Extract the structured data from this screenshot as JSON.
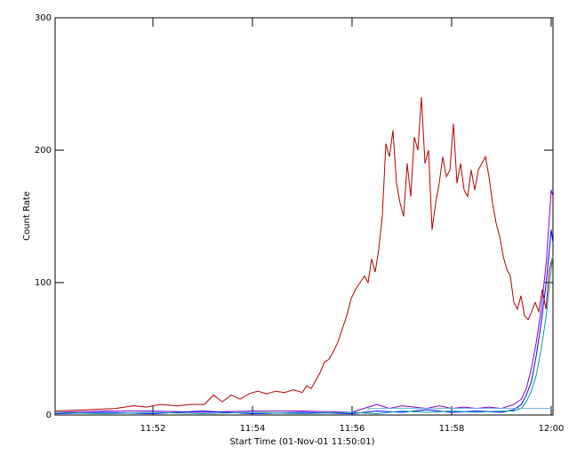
{
  "chart_data": {
    "type": "line",
    "x_label": "Start Time (01-Nov-01 11:50:01)",
    "y_label": "Count Rate",
    "xlim": [
      0.036,
      10.036
    ],
    "ylim": [
      0,
      300
    ],
    "xticks": [
      {
        "value": 2,
        "label": "11:52"
      },
      {
        "value": 4,
        "label": "11:54"
      },
      {
        "value": 6,
        "label": "11:56"
      },
      {
        "value": 8,
        "label": "11:58"
      },
      {
        "value": 10,
        "label": "12:00"
      }
    ],
    "yticks": [
      0,
      100,
      200,
      300
    ],
    "series": [
      {
        "color": "#b00000",
        "x": [
          0.036,
          0.714,
          1.25,
          1.607,
          1.875,
          2.143,
          2.5,
          2.768,
          3.036,
          3.214,
          3.393,
          3.571,
          3.75,
          3.929,
          4.107,
          4.286,
          4.464,
          4.643,
          4.821,
          5.0,
          5.089,
          5.179,
          5.268,
          5.357,
          5.446,
          5.536,
          5.625,
          5.714,
          5.804,
          5.893,
          5.982,
          6.071,
          6.161,
          6.25,
          6.321,
          6.393,
          6.464,
          6.536,
          6.607,
          6.679,
          6.75,
          6.821,
          6.893,
          6.964,
          7.036,
          7.107,
          7.179,
          7.25,
          7.321,
          7.393,
          7.464,
          7.536,
          7.607,
          7.679,
          7.75,
          7.821,
          7.893,
          7.964,
          8.036,
          8.107,
          8.179,
          8.25,
          8.321,
          8.393,
          8.464,
          8.536,
          8.607,
          8.679,
          8.75,
          8.821,
          8.893,
          8.964,
          9.036,
          9.107,
          9.179,
          9.25,
          9.321,
          9.393,
          9.464,
          9.536,
          9.607,
          9.679,
          9.75,
          9.821,
          9.893,
          9.964,
          10.036
        ],
        "values": [
          3,
          4,
          5,
          7,
          6,
          8,
          7,
          8,
          8,
          15,
          10,
          15,
          12,
          16,
          18,
          16,
          18,
          17,
          19,
          17,
          22,
          20,
          26,
          32,
          40,
          42,
          48,
          55,
          65,
          75,
          88,
          95,
          100,
          105,
          100,
          118,
          108,
          125,
          150,
          205,
          195,
          215,
          175,
          160,
          150,
          190,
          165,
          210,
          200,
          240,
          190,
          200,
          140,
          160,
          175,
          195,
          180,
          185,
          220,
          175,
          190,
          170,
          165,
          185,
          170,
          185,
          190,
          195,
          180,
          160,
          145,
          135,
          120,
          110,
          105,
          85,
          80,
          90,
          75,
          72,
          78,
          85,
          78,
          95,
          80,
          110,
          120
        ]
      },
      {
        "color": "#8000c0",
        "x": [
          0.036,
          1,
          2,
          3,
          4,
          5,
          6,
          6.321,
          6.5,
          6.75,
          7,
          7.25,
          7.5,
          7.75,
          8,
          8.25,
          8.5,
          8.75,
          9,
          9.25,
          9.4,
          9.5,
          9.6,
          9.7,
          9.8,
          9.9,
          9.964,
          10.0,
          10.036
        ],
        "values": [
          2,
          3,
          3,
          2,
          3,
          3,
          2,
          6,
          8,
          5,
          7,
          6,
          5,
          7,
          5,
          6,
          5,
          6,
          5,
          8,
          12,
          20,
          35,
          55,
          80,
          115,
          150,
          170,
          165
        ]
      },
      {
        "color": "#0000ff",
        "x": [
          0.036,
          1,
          2,
          3,
          4,
          5,
          6,
          6.5,
          7,
          7.5,
          8,
          8.5,
          9,
          9.25,
          9.4,
          9.5,
          9.6,
          9.7,
          9.8,
          9.9,
          10.0,
          10.036
        ],
        "values": [
          1,
          2,
          1,
          3,
          1,
          2,
          1,
          3,
          2,
          4,
          2,
          3,
          2,
          4,
          8,
          15,
          25,
          45,
          70,
          100,
          140,
          130
        ]
      },
      {
        "color": "#00a0a0",
        "x": [
          0.036,
          1,
          2,
          3,
          4,
          5,
          6,
          6.5,
          7,
          7.5,
          8,
          8.5,
          9,
          9.25,
          9.4,
          9.5,
          9.6,
          9.7,
          9.8,
          9.9,
          10.0,
          10.036
        ],
        "values": [
          2,
          1,
          2,
          1,
          2,
          1,
          2,
          1,
          3,
          2,
          3,
          2,
          3,
          3,
          5,
          10,
          18,
          30,
          50,
          75,
          110,
          120
        ]
      },
      {
        "color": "#70b0e0",
        "x": [
          6.321,
          6.321,
          10.036
        ],
        "values": [
          0,
          5,
          5
        ]
      }
    ]
  }
}
